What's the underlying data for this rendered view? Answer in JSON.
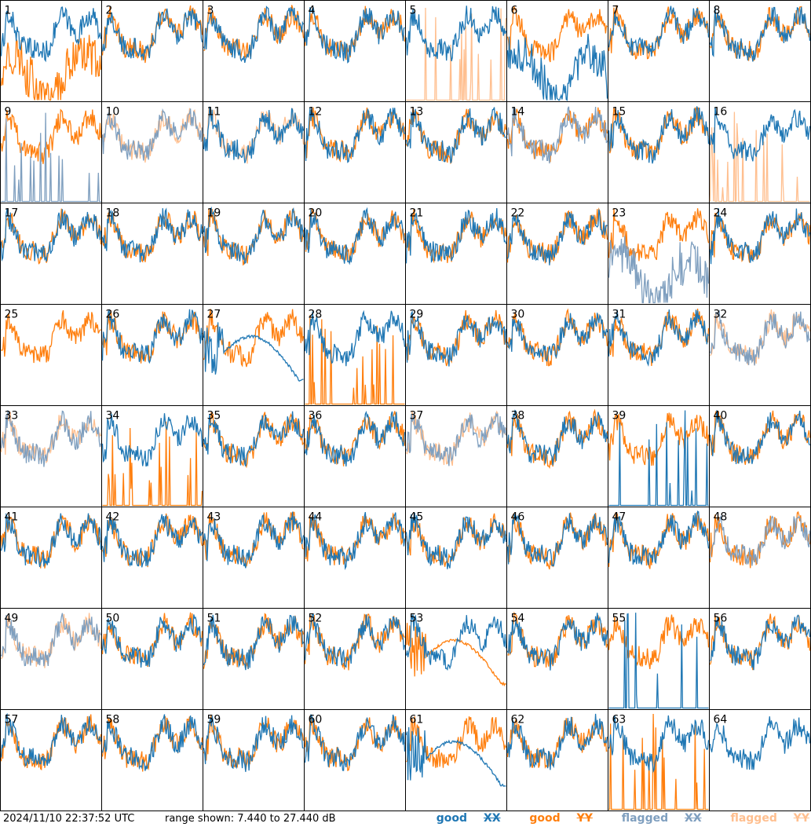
{
  "footer": {
    "timestamp": "2024/11/10 22:37:52 UTC",
    "range_text": "range shown: 7.440 to 27.440 dB"
  },
  "legend": [
    {
      "word": "good",
      "code": "XX",
      "color": "#1f77b4"
    },
    {
      "word": "good",
      "code": "YY",
      "color": "#ff7f0e"
    },
    {
      "word": "flagged",
      "code": "XX",
      "color": "#7f9fbf"
    },
    {
      "word": "flagged",
      "code": "YY",
      "color": "#ffbf8f"
    }
  ],
  "chart_data": {
    "type": "line",
    "grid": "8x8 small multiples",
    "ylim": [
      7.44,
      27.44
    ],
    "yunit": "dB",
    "colors": {
      "good_xx": "#1f77b4",
      "good_yy": "#ff7f0e",
      "flagged_xx": "#7f9fbf",
      "flagged_yy": "#ffbf8f"
    },
    "panels": [
      {
        "label": "1",
        "xx": "good",
        "yy": "good",
        "note": "YY dips low at start"
      },
      {
        "label": "2",
        "xx": "good",
        "yy": "good"
      },
      {
        "label": "3",
        "xx": "good",
        "yy": "good"
      },
      {
        "label": "4",
        "xx": "good",
        "yy": "good"
      },
      {
        "label": "5",
        "xx": "good",
        "yy": "flagged",
        "note": "YY spikes"
      },
      {
        "label": "6",
        "xx": "good",
        "yy": "good",
        "note": "XX deep dip"
      },
      {
        "label": "7",
        "xx": "good",
        "yy": "good"
      },
      {
        "label": "8",
        "xx": "good",
        "yy": "good"
      },
      {
        "label": "9",
        "xx": "flagged",
        "yy": "good",
        "note": "XX spikes"
      },
      {
        "label": "10",
        "xx": "flagged",
        "yy": "flagged"
      },
      {
        "label": "11",
        "xx": "good",
        "yy": "flagged"
      },
      {
        "label": "12",
        "xx": "good",
        "yy": "good"
      },
      {
        "label": "13",
        "xx": "good",
        "yy": "good"
      },
      {
        "label": "14",
        "xx": "flagged",
        "yy": "good"
      },
      {
        "label": "15",
        "xx": "good",
        "yy": "good"
      },
      {
        "label": "16",
        "xx": "good",
        "yy": "flagged",
        "note": "YY spikes"
      },
      {
        "label": "17",
        "xx": "good",
        "yy": "good"
      },
      {
        "label": "18",
        "xx": "good",
        "yy": "good"
      },
      {
        "label": "19",
        "xx": "good",
        "yy": "good"
      },
      {
        "label": "20",
        "xx": "good",
        "yy": "good"
      },
      {
        "label": "21",
        "xx": "good",
        "yy": "good"
      },
      {
        "label": "22",
        "xx": "good",
        "yy": "good"
      },
      {
        "label": "23",
        "xx": "flagged",
        "yy": "good",
        "note": "XX noisy low"
      },
      {
        "label": "24",
        "xx": "good",
        "yy": "good"
      },
      {
        "label": "25",
        "xx": "good",
        "yy": "good",
        "note": "XX mostly absent"
      },
      {
        "label": "26",
        "xx": "good",
        "yy": "good"
      },
      {
        "label": "27",
        "xx": "good",
        "yy": "good",
        "note": "XX smooth hump"
      },
      {
        "label": "28",
        "xx": "good",
        "yy": "good",
        "note": "YY spikes"
      },
      {
        "label": "29",
        "xx": "good",
        "yy": "good"
      },
      {
        "label": "30",
        "xx": "good",
        "yy": "good"
      },
      {
        "label": "31",
        "xx": "good",
        "yy": "good"
      },
      {
        "label": "32",
        "xx": "flagged",
        "yy": "flagged"
      },
      {
        "label": "33",
        "xx": "flagged",
        "yy": "flagged"
      },
      {
        "label": "34",
        "xx": "good",
        "yy": "good",
        "note": "YY spikes"
      },
      {
        "label": "35",
        "xx": "good",
        "yy": "good"
      },
      {
        "label": "36",
        "xx": "good",
        "yy": "good"
      },
      {
        "label": "37",
        "xx": "flagged",
        "yy": "flagged"
      },
      {
        "label": "38",
        "xx": "good",
        "yy": "good"
      },
      {
        "label": "39",
        "xx": "good",
        "yy": "good",
        "note": "XX spikes"
      },
      {
        "label": "40",
        "xx": "good",
        "yy": "good"
      },
      {
        "label": "41",
        "xx": "good",
        "yy": "good"
      },
      {
        "label": "42",
        "xx": "good",
        "yy": "good"
      },
      {
        "label": "43",
        "xx": "good",
        "yy": "good"
      },
      {
        "label": "44",
        "xx": "good",
        "yy": "good"
      },
      {
        "label": "45",
        "xx": "good",
        "yy": "good"
      },
      {
        "label": "46",
        "xx": "good",
        "yy": "good"
      },
      {
        "label": "47",
        "xx": "good",
        "yy": "good"
      },
      {
        "label": "48",
        "xx": "flagged",
        "yy": "good"
      },
      {
        "label": "49",
        "xx": "flagged",
        "yy": "flagged"
      },
      {
        "label": "50",
        "xx": "good",
        "yy": "good"
      },
      {
        "label": "51",
        "xx": "good",
        "yy": "good"
      },
      {
        "label": "52",
        "xx": "good",
        "yy": "good"
      },
      {
        "label": "53",
        "xx": "good",
        "yy": "good",
        "note": "YY smooth hump"
      },
      {
        "label": "54",
        "xx": "good",
        "yy": "good"
      },
      {
        "label": "55",
        "xx": "good",
        "yy": "good",
        "note": "XX spikes"
      },
      {
        "label": "56",
        "xx": "good",
        "yy": "good"
      },
      {
        "label": "57",
        "xx": "good",
        "yy": "good"
      },
      {
        "label": "58",
        "xx": "good",
        "yy": "good"
      },
      {
        "label": "59",
        "xx": "good",
        "yy": "good"
      },
      {
        "label": "60",
        "xx": "good",
        "yy": "good"
      },
      {
        "label": "61",
        "xx": "good",
        "yy": "good",
        "note": "XX smooth hump"
      },
      {
        "label": "62",
        "xx": "good",
        "yy": "good"
      },
      {
        "label": "63",
        "xx": "good",
        "yy": "good",
        "note": "YY spikes"
      },
      {
        "label": "64",
        "xx": "good",
        "yy": "good",
        "note": "YY absent"
      }
    ]
  }
}
